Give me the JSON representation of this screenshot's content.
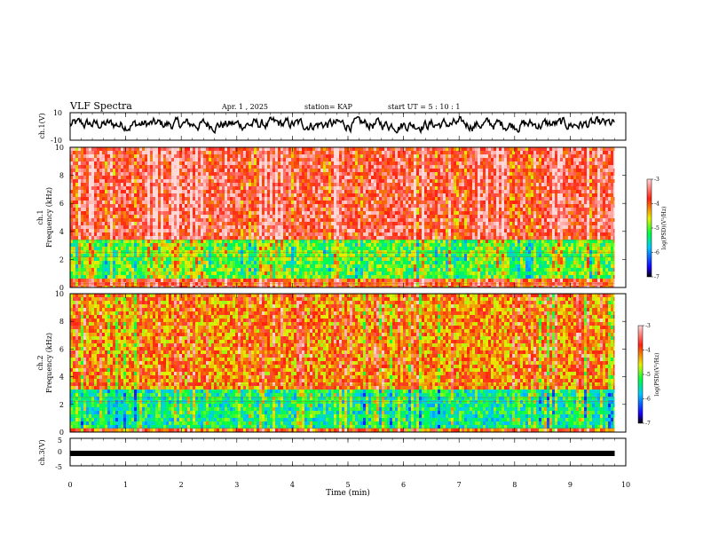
{
  "header": {
    "title": "VLF Spectra",
    "date": "Apr. 1 , 2025",
    "station": "station= KAP",
    "start": "start  UT =   5 : 10 : 1"
  },
  "chart_data": [
    {
      "type": "line",
      "ylabel": "ch.1(V)",
      "ylim": [
        -10,
        10
      ],
      "yticks": [
        "10",
        "-10"
      ],
      "x_range_min": [
        0,
        9.8
      ],
      "description_of_values": "noisy waveform fluctuating mostly between about -4 and +6 V",
      "series": [
        {
          "values_summary": {
            "min": -5,
            "max": 7
          }
        }
      ]
    },
    {
      "type": "heatmap",
      "ylabel": "ch.1\nFrequency (kHz)",
      "ylim": [
        0,
        10
      ],
      "yticks": [
        "0",
        "2",
        "4",
        "6",
        "8",
        "10"
      ],
      "colorbar": {
        "label": "log(PSD)(V²/Hz)",
        "range": [
          -7,
          -3
        ],
        "ticks": [
          "-3",
          "-4",
          "-5",
          "-6",
          "-7"
        ]
      },
      "bands": [
        {
          "freq_khz": [
            0,
            0.6
          ],
          "log_psd": -3.8
        },
        {
          "freq_khz": [
            0.6,
            3.3
          ],
          "log_psd": -5.0
        },
        {
          "freq_khz": [
            3.3,
            10
          ],
          "log_psd": -3.6
        }
      ]
    },
    {
      "type": "heatmap",
      "ylabel": "ch.2\nFrequency (kHz)",
      "ylim": [
        0,
        10
      ],
      "yticks": [
        "0",
        "2",
        "4",
        "6",
        "8",
        "10"
      ],
      "colorbar": {
        "label": "log(PSD)(V²/Hz)",
        "range": [
          -7,
          -3
        ],
        "ticks": [
          "-3",
          "-4",
          "-5",
          "-6",
          "-7"
        ]
      },
      "bands": [
        {
          "freq_khz": [
            0,
            0.3
          ],
          "log_psd": -4.0
        },
        {
          "freq_khz": [
            0.3,
            3.0
          ],
          "log_psd": -5.4
        },
        {
          "freq_khz": [
            3.0,
            10
          ],
          "log_psd": -4.2
        }
      ]
    },
    {
      "type": "line",
      "ylabel": "ch.3(V)",
      "ylim": [
        -5,
        5
      ],
      "yticks": [
        "5",
        "0",
        "-5"
      ],
      "series": [
        {
          "constant_value": -1
        }
      ]
    }
  ],
  "x_axis": {
    "label": "Time (min)",
    "ticks": [
      "0",
      "1",
      "2",
      "3",
      "4",
      "5",
      "6",
      "7",
      "8",
      "9",
      "10"
    ],
    "range": [
      0,
      10
    ],
    "data_end": 9.8
  },
  "colors": {
    "waveform": "#000000",
    "colormap": [
      "#000000",
      "#1a00ff",
      "#00c8ff",
      "#00ff40",
      "#e8f000",
      "#ff2010",
      "#ffd8d8"
    ]
  }
}
